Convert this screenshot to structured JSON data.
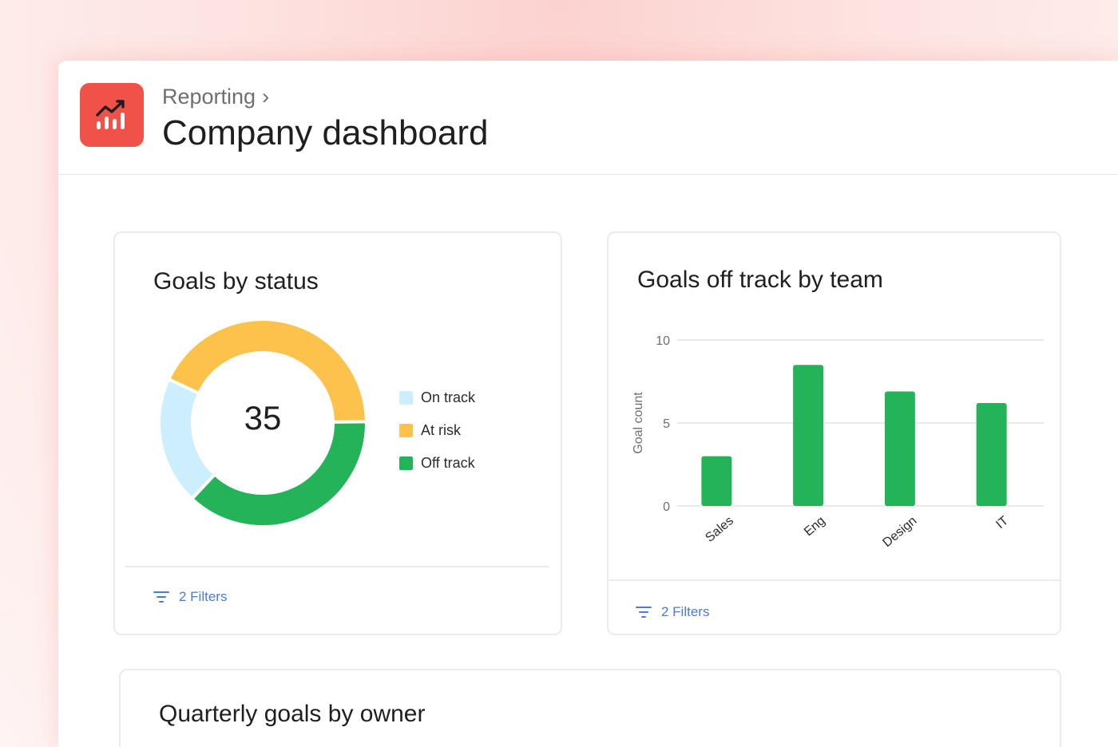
{
  "header": {
    "breadcrumb": "Reporting",
    "breadcrumb_separator": "›",
    "title": "Company dashboard",
    "app_icon": "chart-trending-up-icon"
  },
  "colors": {
    "brand": "#f0524a",
    "on_track": "#cdeefc",
    "at_risk": "#fdc24b",
    "off_track": "#24b358",
    "link": "#4a7bd6"
  },
  "goals_by_status": {
    "title": "Goals by status",
    "total": "35",
    "filters_label": "2 Filters",
    "legend": [
      {
        "label": "On track",
        "color": "#cdeefc"
      },
      {
        "label": "At risk",
        "color": "#fdc24b"
      },
      {
        "label": "Off track",
        "color": "#24b358"
      }
    ]
  },
  "goals_off_track": {
    "title": "Goals off track by team",
    "filters_label": "2 Filters"
  },
  "quarterly": {
    "title": "Quarterly goals by owner"
  },
  "chart_data": [
    {
      "type": "pie",
      "title": "Goals by status",
      "categories": [
        "On track",
        "At risk",
        "Off track"
      ],
      "values": [
        7,
        15,
        13
      ],
      "total": 35
    },
    {
      "type": "bar",
      "title": "Goals off track by team",
      "categories": [
        "Sales",
        "Eng",
        "Design",
        "IT"
      ],
      "values": [
        3,
        8.5,
        6.9,
        6.2
      ],
      "xlabel": "",
      "ylabel": "Goal count",
      "ylim": [
        0,
        10
      ],
      "yticks": [
        0,
        5,
        10
      ],
      "grid": true
    }
  ]
}
